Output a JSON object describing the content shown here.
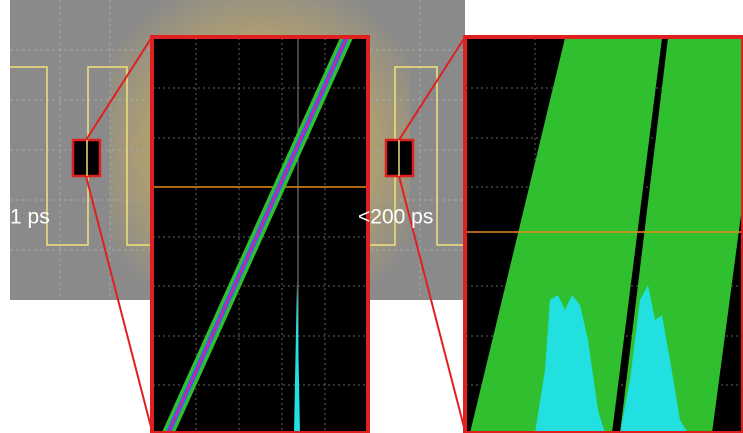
{
  "labels": {
    "left": "1 ps",
    "right": "<200 ps"
  }
}
